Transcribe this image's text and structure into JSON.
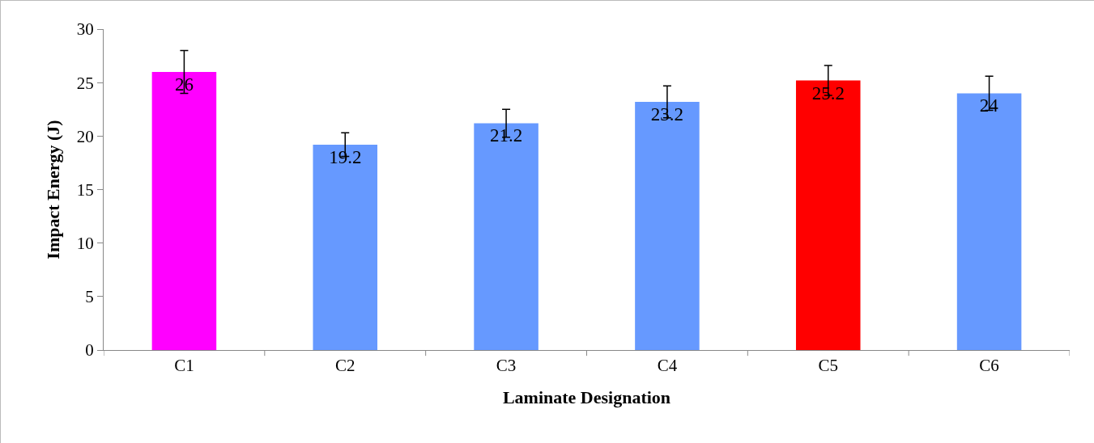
{
  "chart_data": {
    "type": "bar",
    "xlabel": "Laminate Designation",
    "ylabel": "Impact Energy (J)",
    "categories": [
      "C1",
      "C2",
      "C3",
      "C4",
      "C5",
      "C6"
    ],
    "values": [
      26,
      19.2,
      21.2,
      23.2,
      25.2,
      24
    ],
    "colors": [
      "#ff00ff",
      "#6699ff",
      "#6699ff",
      "#6699ff",
      "#ff0000",
      "#6699ff"
    ],
    "errors": [
      2,
      1.1,
      1.3,
      1.5,
      1.4,
      1.6
    ],
    "ylim": [
      0,
      30
    ],
    "yticks": [
      0,
      5,
      10,
      15,
      20,
      25,
      30
    ],
    "grid": false,
    "data_labels": true
  }
}
